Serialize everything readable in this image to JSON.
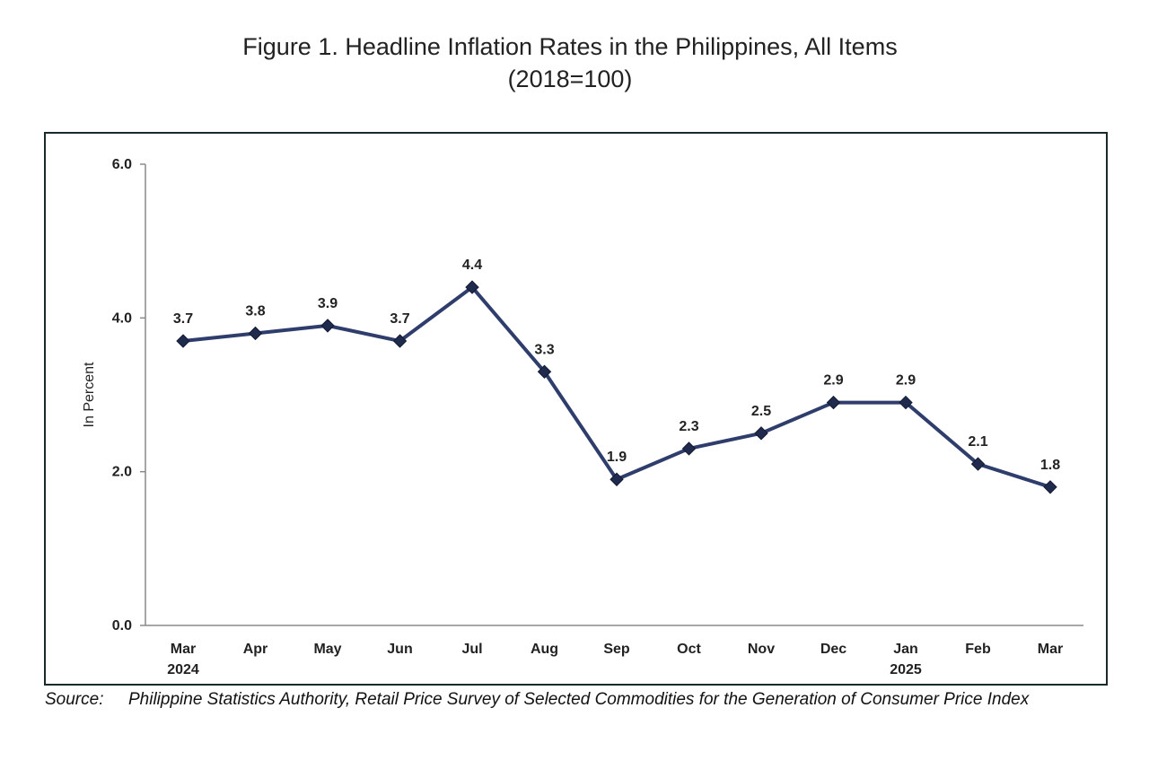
{
  "figure": {
    "title_line1": "Figure 1. Headline Inflation Rates in the Philippines, All Items",
    "title_line2": "(2018=100)"
  },
  "chart_data": {
    "type": "line",
    "title": "Figure 1. Headline Inflation Rates in the Philippines, All Items",
    "subtitle": "(2018=100)",
    "xlabel": "",
    "ylabel": "In Percent",
    "ylim": [
      0,
      6
    ],
    "yticks": [
      "0.0",
      "2.0",
      "4.0",
      "6.0"
    ],
    "categories": [
      "Mar",
      "Apr",
      "May",
      "Jun",
      "Jul",
      "Aug",
      "Sep",
      "Oct",
      "Nov",
      "Dec",
      "Jan",
      "Feb",
      "Mar"
    ],
    "category_years": [
      "2024",
      "",
      "",
      "",
      "",
      "",
      "",
      "",
      "",
      "",
      "2025",
      "",
      ""
    ],
    "series": [
      {
        "values": [
          3.7,
          3.8,
          3.9,
          3.7,
          4.4,
          3.3,
          1.9,
          2.3,
          2.5,
          2.9,
          2.9,
          2.1,
          1.8
        ],
        "labels": [
          "3.7",
          "3.8",
          "3.9",
          "3.7",
          "4.4",
          "3.3",
          "1.9",
          "2.3",
          "2.5",
          "2.9",
          "2.9",
          "2.1",
          "1.8"
        ],
        "color": "#1f2a4d",
        "line_color": "#2e3d6b",
        "marker": "diamond"
      }
    ],
    "grid": false,
    "legend": "none"
  },
  "source": {
    "label": "Source:",
    "text": "Philippine Statistics Authority, Retail Price Survey of Selected Commodities for the Generation of Consumer Price Index"
  }
}
